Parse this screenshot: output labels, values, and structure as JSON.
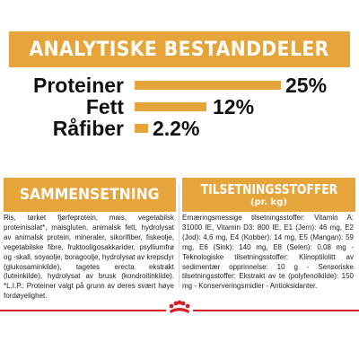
{
  "header": {
    "title": "ANALYTISKE BESTANDDELER"
  },
  "analysis": {
    "rows": [
      {
        "label": "Proteiner",
        "value": "25%",
        "percent": 25
      },
      {
        "label": "Fett",
        "value": "12%",
        "percent": 12
      },
      {
        "label": "Råfiber",
        "value": "2.2%",
        "percent": 2.2
      }
    ]
  },
  "composition": {
    "title": "SAMMENSETNING",
    "text": "Ris, tørket fjørfeprotein, mais, vegetabilsk proteinisolat*, maisgluten, animalsk fett, hydrolysat av animalsk protein, mineraler, sikorifiber, fiskeolje, vegetabilske fibre, fruktooligosakkarider, psylliumfrø og -skall, soyaolje, boragoolje, hydrolysat av krepsdyr (glukosaminkilde), tagetes erecta ekstrakt (luteinkilde), hydrolysat av brusk (kondroitinkilde). *L.I.P.: Proteiner valgt på grunn av deres svært høye fordøyelighet."
  },
  "additives": {
    "title": "TILSETNINGSSTOFFER",
    "subtitle": "(pr. kg)",
    "text": "Ernæringsmessige tilsetningsstoffer: Vitamin A: 31000 IE, Vitamin D3: 800 IE, E1 (Jern): 46 mg, E2 (Jod): 4,6 mg, E4 (Kobber): 14 mg, E5 (Mangan): 59 mg, E6 (Sink): 140 mg, E8 (Selen): 0,08 mg - Teknologiske tilsetningsstoffer: Klinoptilolitt av sedimentær opprinnelse: 10 g - Sensoriske tilsetningsstoffer: Ekstrakt av te (polyfenolkilde): 150 mg - Konserveringsmidler - Antioksidanter."
  },
  "brand": {
    "logo_icon": "royal-canin-crown-icon"
  },
  "colors": {
    "accent": "#e6a53a",
    "brand_red": "#d32027"
  }
}
